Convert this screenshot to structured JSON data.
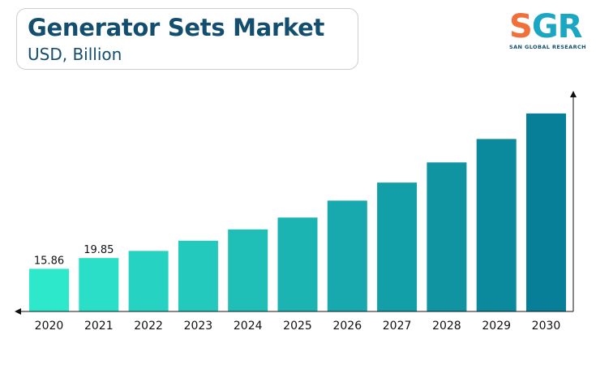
{
  "header": {
    "title": "Generator Sets Market",
    "subtitle": "USD, Billion"
  },
  "logo": {
    "letters_s": "S",
    "letters_gr": "GR",
    "tagline": "SAN GLOBAL RESEARCH"
  },
  "colors": {
    "title": "#134e6f",
    "bar_start": "#2ee8cc",
    "bar_end": "#087f98",
    "axis": "#111111"
  },
  "chart_data": {
    "type": "bar",
    "title": "Generator Sets Market",
    "subtitle": "USD, Billion",
    "categories": [
      "2020",
      "2021",
      "2022",
      "2023",
      "2024",
      "2025",
      "2026",
      "2027",
      "2028",
      "2029",
      "2030"
    ],
    "values": [
      15.86,
      19.85,
      22.5,
      26.3,
      30.5,
      34.9,
      41.2,
      47.9,
      55.4,
      64.1,
      73.6
    ],
    "data_labels": [
      "15.86",
      "19.85",
      "",
      "",
      "",
      "",
      "",
      "",
      "",
      "",
      ""
    ],
    "ylim": [
      0,
      82
    ],
    "grid": false,
    "legend": "none"
  }
}
